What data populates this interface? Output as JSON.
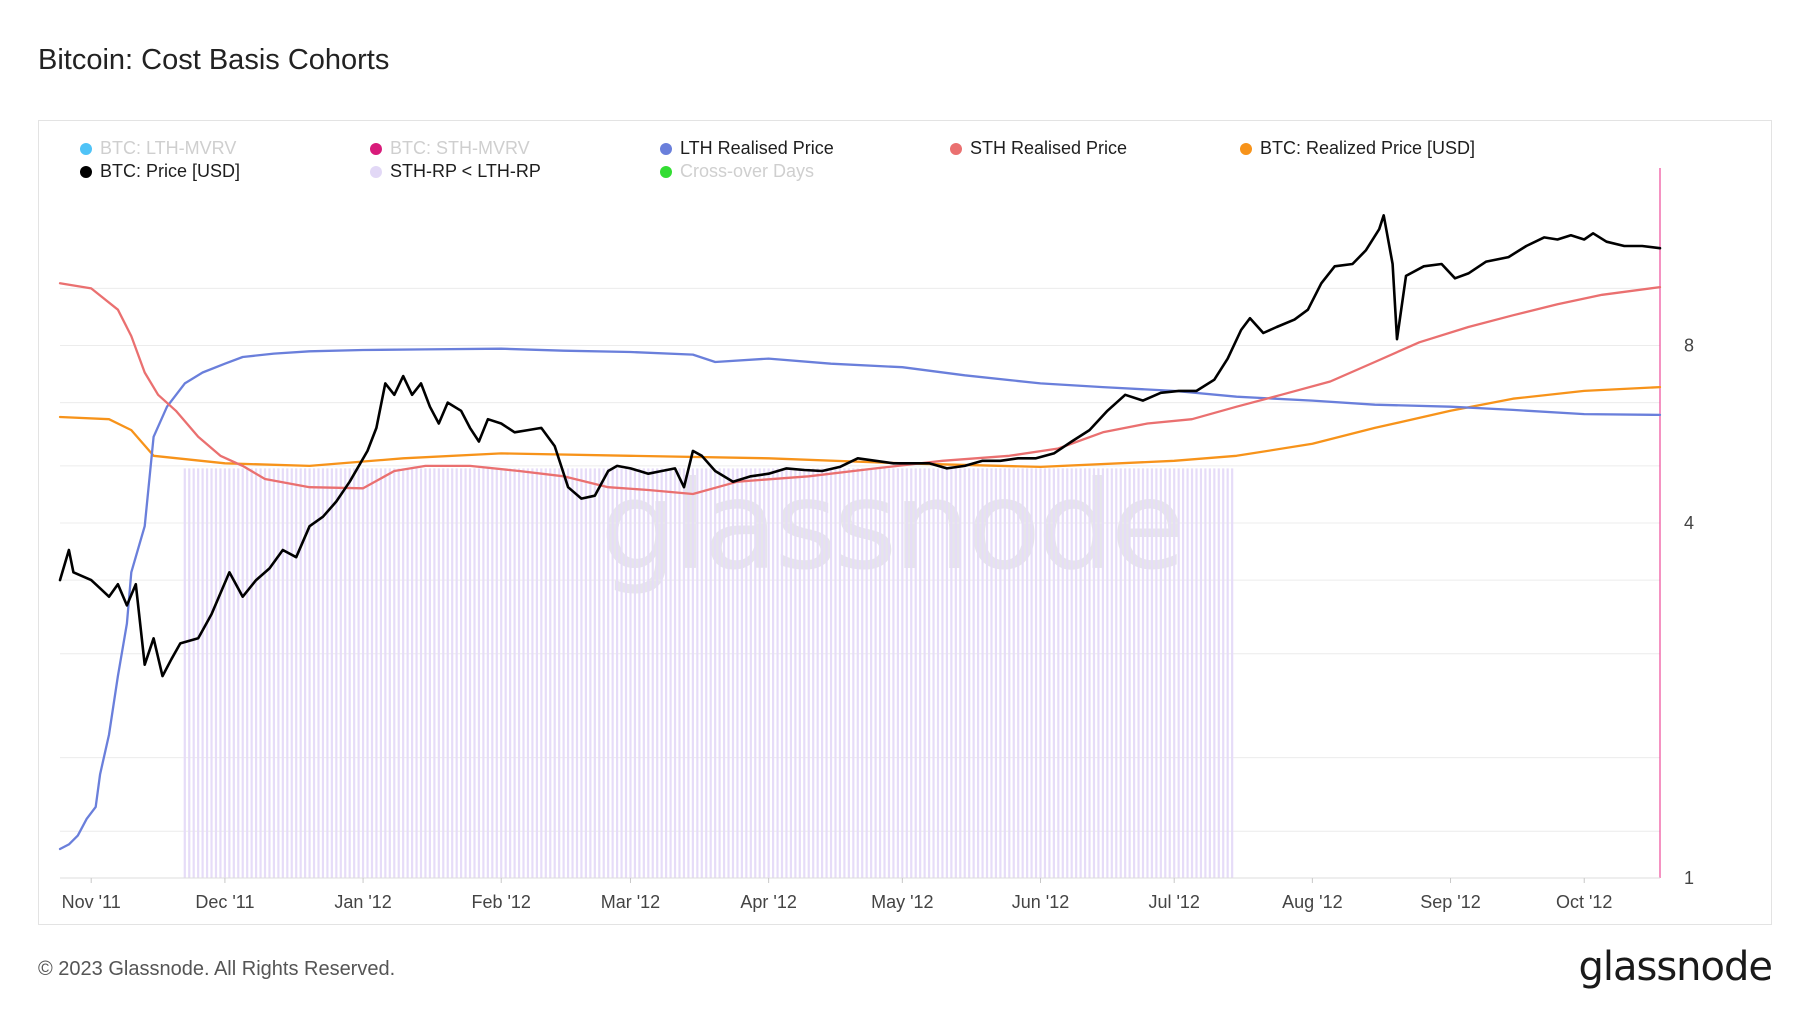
{
  "page": {
    "title": "Bitcoin: Cost Basis Cohorts",
    "copyright": "© 2023 Glassnode. All Rights Reserved.",
    "brand": "glassnode",
    "watermark": "glassnode"
  },
  "legend": [
    {
      "label": "BTC: LTH-MVRV",
      "color": "#4fc3f7",
      "active": false
    },
    {
      "label": "BTC: STH-MVRV",
      "color": "#d81b7a",
      "active": false
    },
    {
      "label": "LTH Realised Price",
      "color": "#6a7fdb",
      "active": true
    },
    {
      "label": "STH Realised Price",
      "color": "#ea7070",
      "active": true
    },
    {
      "label": "BTC: Realized Price [USD]",
      "color": "#f7931a",
      "active": true
    },
    {
      "label": "BTC: Price [USD]",
      "color": "#000000",
      "active": true
    },
    {
      "label": "STH-RP < LTH-RP",
      "color": "#e2d8f6",
      "active": true
    },
    {
      "label": "Cross-over Days",
      "color": "#33dd33",
      "active": false
    }
  ],
  "chart_data": {
    "type": "line",
    "x_range": [
      "2011-10-25",
      "2012-10-18"
    ],
    "x_ticks": [
      "Nov '11",
      "Dec '11",
      "Jan '12",
      "Feb '12",
      "Mar '12",
      "Apr '12",
      "May '12",
      "Jun '12",
      "Jul '12",
      "Aug '12",
      "Sep '12",
      "Oct '12"
    ],
    "x_tick_dates": [
      "2011-11-01",
      "2011-12-01",
      "2012-01-01",
      "2012-02-01",
      "2012-03-01",
      "2012-04-01",
      "2012-05-01",
      "2012-06-01",
      "2012-07-01",
      "2012-08-01",
      "2012-09-01",
      "2012-10-01"
    ],
    "y_scale": "log",
    "y_range": [
      1,
      16
    ],
    "y_ticks": [
      1,
      4,
      8
    ],
    "y_tick_labels": [
      "1",
      "4",
      "8"
    ],
    "colors": {
      "lth": "#6a7fdb",
      "sth": "#ea7070",
      "realized": "#f7931a",
      "price": "#000000",
      "shade": "#e6dcf8",
      "crossover": "#ee4a9a",
      "grid": "#ececec"
    },
    "shaded_region": {
      "name": "STH-RP < LTH-RP",
      "start": "2011-11-22",
      "end": "2012-07-14"
    },
    "crossover_line": "2012-10-18",
    "series": [
      {
        "name": "BTC: Price [USD]",
        "key": "price",
        "points": [
          [
            "2011-10-25",
            3.2
          ],
          [
            "2011-10-27",
            3.6
          ],
          [
            "2011-10-28",
            3.3
          ],
          [
            "2011-10-30",
            3.25
          ],
          [
            "2011-11-01",
            3.2
          ],
          [
            "2011-11-03",
            3.1
          ],
          [
            "2011-11-05",
            3.0
          ],
          [
            "2011-11-07",
            3.15
          ],
          [
            "2011-11-09",
            2.9
          ],
          [
            "2011-11-11",
            3.15
          ],
          [
            "2011-11-13",
            2.3
          ],
          [
            "2011-11-15",
            2.55
          ],
          [
            "2011-11-17",
            2.2
          ],
          [
            "2011-11-19",
            2.35
          ],
          [
            "2011-11-21",
            2.5
          ],
          [
            "2011-11-25",
            2.55
          ],
          [
            "2011-11-28",
            2.8
          ],
          [
            "2011-12-02",
            3.3
          ],
          [
            "2011-12-05",
            3.0
          ],
          [
            "2011-12-08",
            3.2
          ],
          [
            "2011-12-11",
            3.35
          ],
          [
            "2011-12-14",
            3.6
          ],
          [
            "2011-12-17",
            3.5
          ],
          [
            "2011-12-20",
            3.95
          ],
          [
            "2011-12-23",
            4.1
          ],
          [
            "2011-12-26",
            4.35
          ],
          [
            "2011-12-29",
            4.7
          ],
          [
            "2012-01-02",
            5.3
          ],
          [
            "2012-01-04",
            5.8
          ],
          [
            "2012-01-06",
            6.9
          ],
          [
            "2012-01-08",
            6.6
          ],
          [
            "2012-01-10",
            7.1
          ],
          [
            "2012-01-12",
            6.6
          ],
          [
            "2012-01-14",
            6.9
          ],
          [
            "2012-01-16",
            6.3
          ],
          [
            "2012-01-18",
            5.9
          ],
          [
            "2012-01-20",
            6.4
          ],
          [
            "2012-01-23",
            6.2
          ],
          [
            "2012-01-25",
            5.8
          ],
          [
            "2012-01-27",
            5.5
          ],
          [
            "2012-01-29",
            6.0
          ],
          [
            "2012-02-01",
            5.9
          ],
          [
            "2012-02-04",
            5.7
          ],
          [
            "2012-02-07",
            5.75
          ],
          [
            "2012-02-10",
            5.8
          ],
          [
            "2012-02-13",
            5.4
          ],
          [
            "2012-02-16",
            4.6
          ],
          [
            "2012-02-19",
            4.4
          ],
          [
            "2012-02-22",
            4.45
          ],
          [
            "2012-02-25",
            4.9
          ],
          [
            "2012-02-27",
            5.0
          ],
          [
            "2012-03-01",
            4.95
          ],
          [
            "2012-03-03",
            4.9
          ],
          [
            "2012-03-05",
            4.85
          ],
          [
            "2012-03-08",
            4.9
          ],
          [
            "2012-03-11",
            4.95
          ],
          [
            "2012-03-13",
            4.6
          ],
          [
            "2012-03-15",
            5.3
          ],
          [
            "2012-03-17",
            5.2
          ],
          [
            "2012-03-20",
            4.9
          ],
          [
            "2012-03-24",
            4.7
          ],
          [
            "2012-03-28",
            4.8
          ],
          [
            "2012-04-01",
            4.85
          ],
          [
            "2012-04-05",
            4.95
          ],
          [
            "2012-04-09",
            4.92
          ],
          [
            "2012-04-13",
            4.9
          ],
          [
            "2012-04-17",
            4.98
          ],
          [
            "2012-04-21",
            5.15
          ],
          [
            "2012-04-25",
            5.1
          ],
          [
            "2012-04-29",
            5.05
          ],
          [
            "2012-05-03",
            5.05
          ],
          [
            "2012-05-07",
            5.05
          ],
          [
            "2012-05-11",
            4.95
          ],
          [
            "2012-05-15",
            5.0
          ],
          [
            "2012-05-19",
            5.1
          ],
          [
            "2012-05-23",
            5.1
          ],
          [
            "2012-05-27",
            5.15
          ],
          [
            "2012-05-31",
            5.15
          ],
          [
            "2012-06-04",
            5.25
          ],
          [
            "2012-06-08",
            5.5
          ],
          [
            "2012-06-12",
            5.75
          ],
          [
            "2012-06-16",
            6.2
          ],
          [
            "2012-06-20",
            6.6
          ],
          [
            "2012-06-24",
            6.45
          ],
          [
            "2012-06-28",
            6.65
          ],
          [
            "2012-07-02",
            6.7
          ],
          [
            "2012-07-06",
            6.7
          ],
          [
            "2012-07-10",
            7.0
          ],
          [
            "2012-07-13",
            7.6
          ],
          [
            "2012-07-16",
            8.5
          ],
          [
            "2012-07-18",
            8.9
          ],
          [
            "2012-07-21",
            8.4
          ],
          [
            "2012-07-24",
            8.6
          ],
          [
            "2012-07-28",
            8.85
          ],
          [
            "2012-07-31",
            9.2
          ],
          [
            "2012-08-03",
            10.2
          ],
          [
            "2012-08-06",
            10.9
          ],
          [
            "2012-08-10",
            11.0
          ],
          [
            "2012-08-13",
            11.6
          ],
          [
            "2012-08-16",
            12.6
          ],
          [
            "2012-08-17",
            13.3
          ],
          [
            "2012-08-19",
            11.0
          ],
          [
            "2012-08-20",
            8.2
          ],
          [
            "2012-08-22",
            10.5
          ],
          [
            "2012-08-26",
            10.9
          ],
          [
            "2012-08-30",
            11.0
          ],
          [
            "2012-09-02",
            10.4
          ],
          [
            "2012-09-05",
            10.6
          ],
          [
            "2012-09-09",
            11.1
          ],
          [
            "2012-09-14",
            11.3
          ],
          [
            "2012-09-18",
            11.8
          ],
          [
            "2012-09-22",
            12.2
          ],
          [
            "2012-09-25",
            12.1
          ],
          [
            "2012-09-28",
            12.3
          ],
          [
            "2012-10-01",
            12.1
          ],
          [
            "2012-10-03",
            12.4
          ],
          [
            "2012-10-06",
            12.0
          ],
          [
            "2012-10-10",
            11.8
          ],
          [
            "2012-10-14",
            11.8
          ],
          [
            "2012-10-18",
            11.7
          ]
        ]
      },
      {
        "name": "LTH Realised Price",
        "key": "lth",
        "points": [
          [
            "2011-10-25",
            1.12
          ],
          [
            "2011-10-27",
            1.14
          ],
          [
            "2011-10-29",
            1.18
          ],
          [
            "2011-10-31",
            1.26
          ],
          [
            "2011-11-02",
            1.32
          ],
          [
            "2011-11-03",
            1.5
          ],
          [
            "2011-11-05",
            1.75
          ],
          [
            "2011-11-07",
            2.2
          ],
          [
            "2011-11-09",
            2.7
          ],
          [
            "2011-11-10",
            3.3
          ],
          [
            "2011-11-13",
            3.95
          ],
          [
            "2011-11-15",
            5.6
          ],
          [
            "2011-11-18",
            6.3
          ],
          [
            "2011-11-22",
            6.9
          ],
          [
            "2011-11-26",
            7.2
          ],
          [
            "2011-12-01",
            7.45
          ],
          [
            "2011-12-05",
            7.65
          ],
          [
            "2011-12-12",
            7.75
          ],
          [
            "2011-12-20",
            7.82
          ],
          [
            "2012-01-01",
            7.86
          ],
          [
            "2012-01-15",
            7.88
          ],
          [
            "2012-02-01",
            7.9
          ],
          [
            "2012-02-15",
            7.84
          ],
          [
            "2012-03-01",
            7.8
          ],
          [
            "2012-03-15",
            7.72
          ],
          [
            "2012-03-20",
            7.5
          ],
          [
            "2012-04-01",
            7.6
          ],
          [
            "2012-04-15",
            7.45
          ],
          [
            "2012-05-01",
            7.35
          ],
          [
            "2012-05-15",
            7.12
          ],
          [
            "2012-06-01",
            6.9
          ],
          [
            "2012-06-15",
            6.8
          ],
          [
            "2012-07-01",
            6.7
          ],
          [
            "2012-07-15",
            6.55
          ],
          [
            "2012-08-01",
            6.45
          ],
          [
            "2012-08-15",
            6.35
          ],
          [
            "2012-09-01",
            6.3
          ],
          [
            "2012-09-15",
            6.22
          ],
          [
            "2012-10-01",
            6.12
          ],
          [
            "2012-10-18",
            6.1
          ]
        ]
      },
      {
        "name": "STH Realised Price",
        "key": "sth",
        "points": [
          [
            "2011-10-25",
            10.2
          ],
          [
            "2011-11-01",
            10.0
          ],
          [
            "2011-11-07",
            9.2
          ],
          [
            "2011-11-10",
            8.3
          ],
          [
            "2011-11-13",
            7.2
          ],
          [
            "2011-11-16",
            6.6
          ],
          [
            "2011-11-20",
            6.2
          ],
          [
            "2011-11-25",
            5.6
          ],
          [
            "2011-11-30",
            5.2
          ],
          [
            "2011-12-05",
            5.0
          ],
          [
            "2011-12-10",
            4.75
          ],
          [
            "2011-12-20",
            4.6
          ],
          [
            "2012-01-01",
            4.58
          ],
          [
            "2012-01-08",
            4.9
          ],
          [
            "2012-01-15",
            5.0
          ],
          [
            "2012-01-25",
            5.0
          ],
          [
            "2012-02-05",
            4.9
          ],
          [
            "2012-02-15",
            4.8
          ],
          [
            "2012-02-25",
            4.6
          ],
          [
            "2012-03-05",
            4.55
          ],
          [
            "2012-03-15",
            4.48
          ],
          [
            "2012-03-25",
            4.7
          ],
          [
            "2012-04-10",
            4.8
          ],
          [
            "2012-04-25",
            4.95
          ],
          [
            "2012-05-10",
            5.1
          ],
          [
            "2012-05-25",
            5.2
          ],
          [
            "2012-06-05",
            5.35
          ],
          [
            "2012-06-15",
            5.7
          ],
          [
            "2012-06-25",
            5.9
          ],
          [
            "2012-07-05",
            6.0
          ],
          [
            "2012-07-15",
            6.3
          ],
          [
            "2012-07-25",
            6.6
          ],
          [
            "2012-08-05",
            6.95
          ],
          [
            "2012-08-15",
            7.5
          ],
          [
            "2012-08-25",
            8.1
          ],
          [
            "2012-09-05",
            8.6
          ],
          [
            "2012-09-15",
            9.0
          ],
          [
            "2012-09-25",
            9.4
          ],
          [
            "2012-10-05",
            9.75
          ],
          [
            "2012-10-18",
            10.05
          ]
        ]
      },
      {
        "name": "BTC: Realized Price [USD]",
        "key": "realized",
        "points": [
          [
            "2011-10-25",
            6.05
          ],
          [
            "2011-11-05",
            6.0
          ],
          [
            "2011-11-10",
            5.75
          ],
          [
            "2011-11-15",
            5.2
          ],
          [
            "2011-12-01",
            5.05
          ],
          [
            "2011-12-20",
            5.0
          ],
          [
            "2012-01-10",
            5.15
          ],
          [
            "2012-02-01",
            5.25
          ],
          [
            "2012-03-01",
            5.2
          ],
          [
            "2012-04-01",
            5.15
          ],
          [
            "2012-05-01",
            5.05
          ],
          [
            "2012-06-01",
            4.98
          ],
          [
            "2012-07-01",
            5.1
          ],
          [
            "2012-07-15",
            5.2
          ],
          [
            "2012-08-01",
            5.45
          ],
          [
            "2012-08-15",
            5.8
          ],
          [
            "2012-09-01",
            6.2
          ],
          [
            "2012-09-15",
            6.5
          ],
          [
            "2012-10-01",
            6.7
          ],
          [
            "2012-10-18",
            6.8
          ]
        ]
      }
    ]
  }
}
